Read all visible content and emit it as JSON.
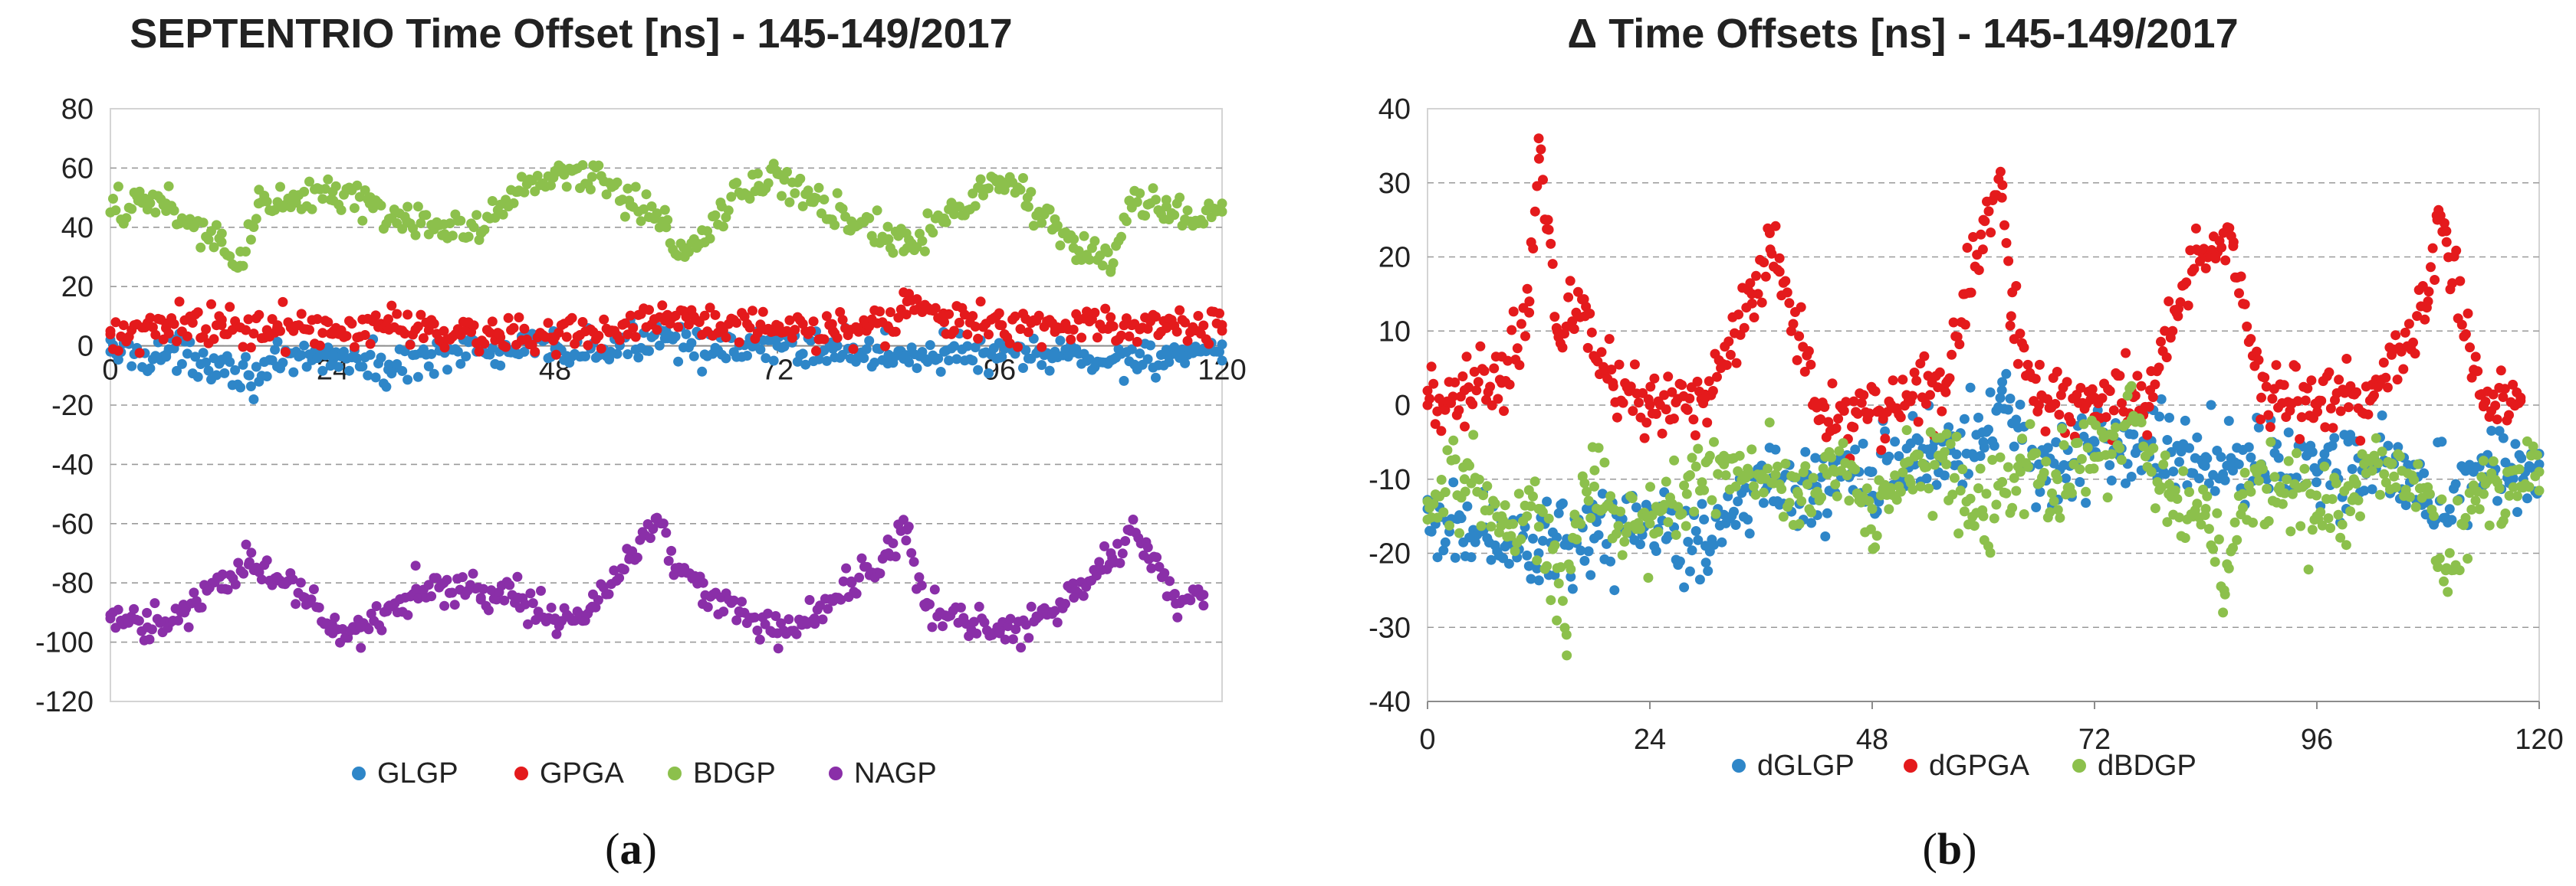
{
  "figure": {
    "panels": [
      {
        "caption_label": "a"
      },
      {
        "caption_label": "b"
      }
    ]
  },
  "chart_data": [
    {
      "type": "scatter",
      "title": "SEPTENTRIO Time Offset [ns] - 145-149/2017",
      "xlabel": "",
      "ylabel": "",
      "xlim": [
        0,
        120
      ],
      "ylim": [
        -120,
        80
      ],
      "x_ticks": [
        0,
        24,
        48,
        72,
        96,
        120
      ],
      "y_ticks": [
        -120,
        -100,
        -80,
        -60,
        -40,
        -20,
        0,
        20,
        40,
        60,
        80
      ],
      "x_axis_at_zero": true,
      "grid": "horizontal-dashed",
      "legend_position": "bottom",
      "series": [
        {
          "name": "GLGP",
          "color": "#2e86c8",
          "x": [
            0,
            6,
            12,
            15,
            18,
            24,
            30,
            36,
            42,
            48,
            54,
            60,
            66,
            72,
            78,
            84,
            90,
            96,
            102,
            108,
            114,
            120
          ],
          "y": [
            -2,
            -3,
            -5,
            -10,
            -7,
            -3,
            -8,
            -1,
            -2,
            -1,
            -2,
            5,
            -3,
            0,
            -1,
            -3,
            -2,
            -4,
            -3,
            -5,
            -3,
            -5
          ]
        },
        {
          "name": "GPGA",
          "color": "#e41a1c",
          "x": [
            0,
            6,
            12,
            18,
            24,
            30,
            36,
            42,
            48,
            54,
            60,
            66,
            72,
            78,
            84,
            86,
            90,
            96,
            102,
            108,
            114,
            120
          ],
          "y": [
            5,
            6,
            7,
            6,
            4,
            9,
            5,
            4,
            3,
            5,
            10,
            6,
            5,
            5,
            6,
            15,
            8,
            7,
            6,
            7,
            6,
            7
          ]
        },
        {
          "name": "BDGP",
          "color": "#8cc04c",
          "x": [
            0,
            3,
            6,
            9,
            12,
            14,
            16,
            20,
            24,
            28,
            32,
            36,
            40,
            44,
            48,
            52,
            56,
            60,
            62,
            66,
            70,
            72,
            76,
            80,
            84,
            86,
            90,
            94,
            96,
            99,
            102,
            104,
            108,
            110,
            114,
            117,
            120
          ],
          "y": [
            45,
            49,
            48,
            40,
            35,
            27,
            48,
            49,
            52,
            48,
            42,
            41,
            38,
            52,
            59,
            57,
            49,
            40,
            30,
            47,
            54,
            58,
            50,
            42,
            36,
            33,
            43,
            53,
            56,
            50,
            40,
            36,
            26,
            49,
            47,
            42,
            48
          ]
        },
        {
          "name": "NAGP",
          "color": "#8a2fa8",
          "x": [
            0,
            4,
            8,
            12,
            15,
            18,
            21,
            24,
            27,
            30,
            33,
            36,
            40,
            44,
            48,
            52,
            56,
            59,
            61,
            64,
            68,
            72,
            76,
            80,
            84,
            86,
            88,
            92,
            96,
            100,
            104,
            108,
            110,
            112,
            115,
            118
          ],
          "y": [
            -92,
            -95,
            -90,
            -82,
            -73,
            -78,
            -85,
            -97,
            -95,
            -88,
            -82,
            -80,
            -85,
            -85,
            -92,
            -88,
            -72,
            -58,
            -75,
            -80,
            -90,
            -97,
            -92,
            -80,
            -70,
            -62,
            -88,
            -93,
            -97,
            -92,
            -85,
            -70,
            -62,
            -68,
            -87,
            -84
          ]
        }
      ]
    },
    {
      "type": "scatter",
      "title": "Δ Time Offsets [ns] - 145-149/2017",
      "xlabel": "",
      "ylabel": "",
      "xlim": [
        0,
        120
      ],
      "ylim": [
        -40,
        40
      ],
      "x_ticks": [
        0,
        24,
        48,
        72,
        96,
        120
      ],
      "y_ticks": [
        -40,
        -30,
        -20,
        -10,
        0,
        10,
        20,
        30,
        40
      ],
      "grid": "horizontal-dashed",
      "legend_position": "bottom",
      "series": [
        {
          "name": "dGLGP",
          "color": "#2e86c8",
          "x": [
            0,
            6,
            12,
            18,
            24,
            30,
            36,
            42,
            48,
            54,
            60,
            62,
            66,
            72,
            78,
            84,
            90,
            96,
            102,
            108,
            114,
            120
          ],
          "y": [
            -14,
            -17,
            -20,
            -18,
            -15,
            -19,
            -10,
            -11,
            -9,
            -6,
            -5,
            2,
            -8,
            -5,
            -6,
            -7,
            -8,
            -9,
            -8,
            -12,
            -10,
            -8
          ]
        },
        {
          "name": "dGPGA",
          "color": "#e41a1c",
          "x": [
            0,
            4,
            8,
            11,
            12,
            13,
            14,
            17,
            20,
            24,
            30,
            35,
            37,
            38,
            42,
            46,
            52,
            56,
            58,
            60,
            62,
            63,
            66,
            72,
            78,
            81,
            83,
            85,
            87,
            90,
            96,
            102,
            108,
            109,
            110,
            114,
            118
          ],
          "y": [
            0,
            2,
            3,
            14,
            36,
            25,
            10,
            12,
            3,
            0,
            1,
            15,
            21,
            18,
            0,
            -3,
            1,
            3,
            15,
            25,
            28,
            12,
            0,
            1,
            2,
            12,
            21,
            20,
            22,
            1,
            0,
            1,
            14,
            25,
            22,
            0,
            1
          ]
        },
        {
          "name": "dBDGP",
          "color": "#8cc04c",
          "x": [
            0,
            4,
            8,
            12,
            14,
            15,
            16,
            18,
            20,
            24,
            28,
            32,
            36,
            40,
            44,
            48,
            52,
            56,
            60,
            64,
            68,
            72,
            76,
            80,
            84,
            86,
            88,
            92,
            96,
            100,
            104,
            108,
            110,
            114,
            118,
            120
          ],
          "y": [
            -13,
            -10,
            -15,
            -14,
            -22,
            -31,
            -16,
            -11,
            -14,
            -16,
            -12,
            -8,
            -10,
            -12,
            -9,
            -14,
            -10,
            -8,
            -15,
            -9,
            -10,
            -7,
            -2,
            -12,
            -14,
            -25,
            -12,
            -11,
            -15,
            -10,
            -8,
            -12,
            -22,
            -12,
            -11,
            -9
          ]
        }
      ]
    }
  ]
}
